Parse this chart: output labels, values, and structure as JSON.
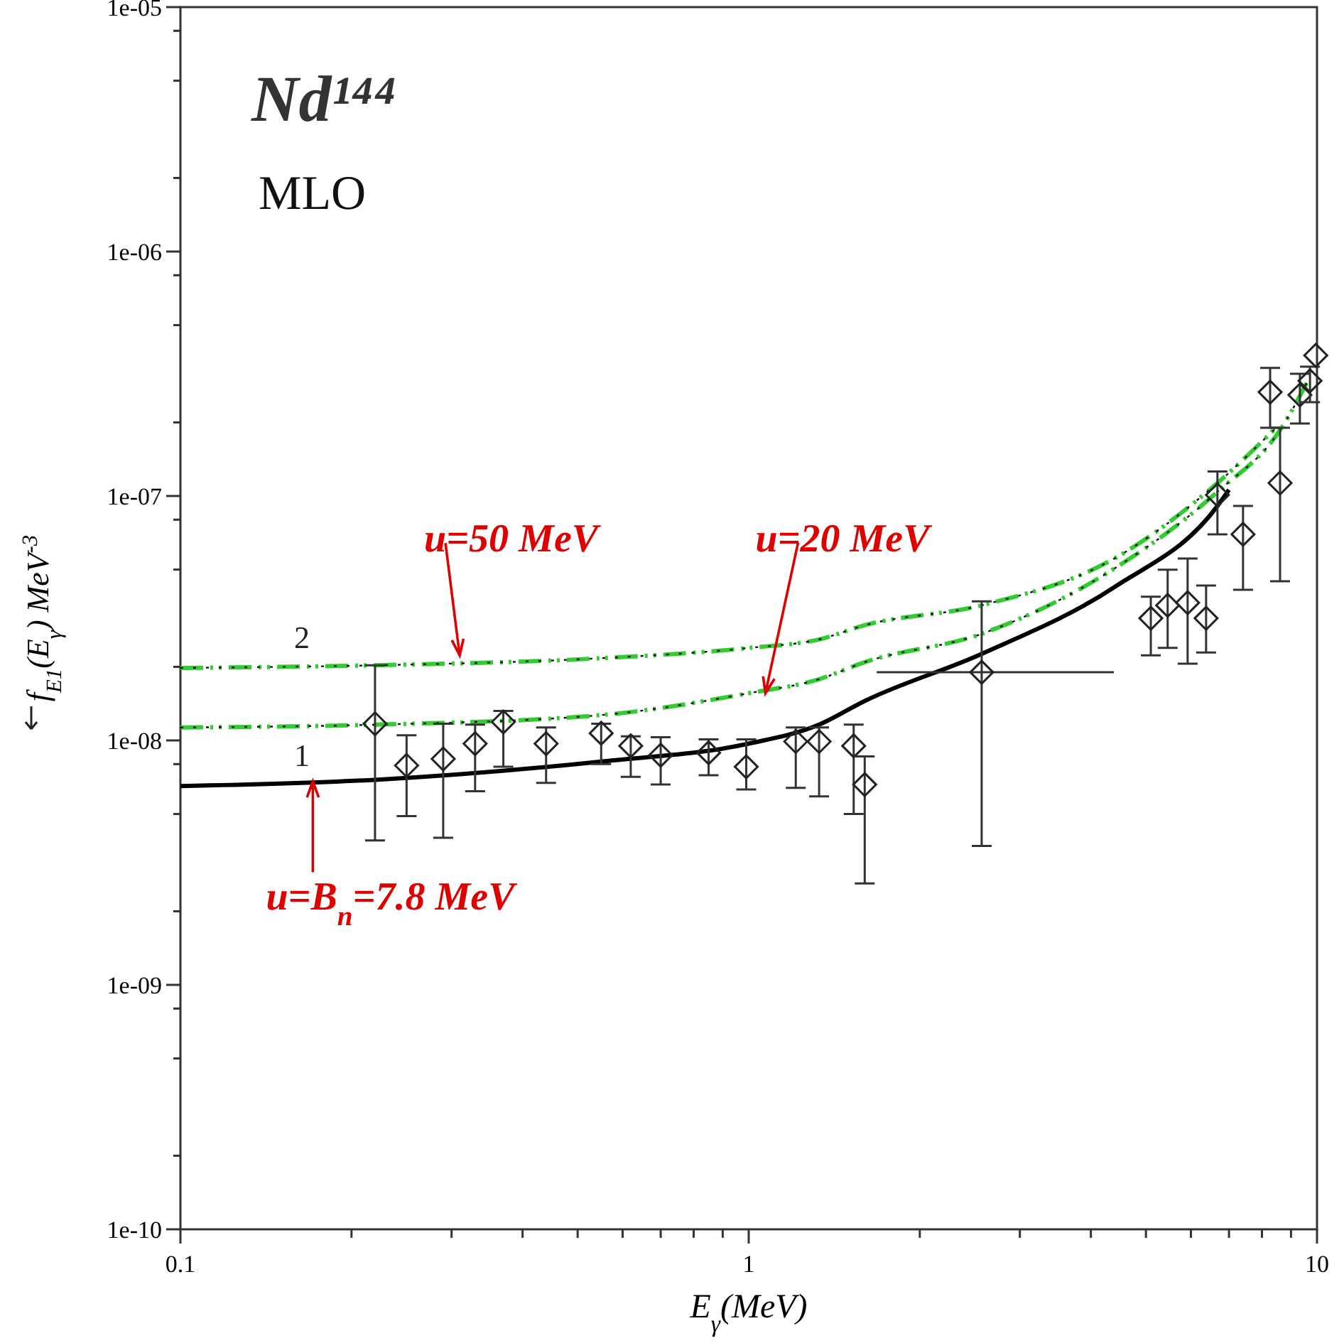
{
  "chart_data": {
    "type": "scatter",
    "title": "Nd¹⁴⁴",
    "subtitle": "MLO",
    "xlabel": "E$_{γ}$(MeV)",
    "ylabel": "f$_{E1}$(E$_{γ}$)  MeV$^{-3}$",
    "log": "xy",
    "grid": false,
    "marker": "diamond",
    "xlim": [
      0.1,
      10
    ],
    "xticks": [
      0.1,
      {
        "value": 0.2,
        "label": null
      },
      {
        "value": 0.3,
        "label": null
      },
      {
        "value": 0.4,
        "label": null
      },
      {
        "value": 0.5,
        "label": null
      },
      {
        "value": 0.6,
        "label": null
      },
      {
        "value": 0.7,
        "label": null
      },
      {
        "value": 0.8,
        "label": null
      },
      {
        "value": 0.9,
        "label": null
      },
      1,
      {
        "value": 2,
        "label": null
      },
      {
        "value": 3,
        "label": null
      },
      {
        "value": 4,
        "label": null
      },
      {
        "value": 5,
        "label": null
      },
      {
        "value": 6,
        "label": null
      },
      {
        "value": 7,
        "label": null
      },
      {
        "value": 8,
        "label": null
      },
      {
        "value": 9,
        "label": null
      },
      10
    ],
    "ylim": [
      1e-10,
      1e-05
    ],
    "yticks": [
      {
        "value": 1e-10,
        "label": "1e-10"
      },
      {
        "value": 2e-10,
        "label": null
      },
      {
        "value": 5e-10,
        "label": null
      },
      {
        "value": 8e-10,
        "label": null
      },
      {
        "value": 1e-09,
        "label": "1e-09"
      },
      {
        "value": 2e-09,
        "label": null
      },
      {
        "value": 5e-09,
        "label": null
      },
      {
        "value": 8e-09,
        "label": null
      },
      {
        "value": 1e-08,
        "label": "1e-08"
      },
      {
        "value": 2e-08,
        "label": null
      },
      {
        "value": 5e-08,
        "label": null
      },
      {
        "value": 8e-08,
        "label": null
      },
      {
        "value": 1e-07,
        "label": "1e-07"
      },
      {
        "value": 2e-07,
        "label": null
      },
      {
        "value": 5e-07,
        "label": null
      },
      {
        "value": 8e-07,
        "label": null
      },
      {
        "value": 1e-06,
        "label": "1e-06"
      },
      {
        "value": 2e-06,
        "label": null
      },
      {
        "value": 5e-06,
        "label": null
      },
      {
        "value": 8e-06,
        "label": null
      },
      {
        "value": 1e-05,
        "label": "1e-05"
      }
    ],
    "series": [
      {
        "type": "line",
        "name": "1",
        "color": "#000000",
        "line_style": "solid",
        "marker": "none",
        "x": [
          0.1,
          0.22,
          0.55,
          1,
          1.33,
          1.6,
          2.57,
          4.4,
          6.68,
          7.0
        ],
        "values": [
          6.5e-09,
          6.9e-09,
          8.2e-09,
          9.7e-09,
          1.16e-08,
          1.45e-08,
          2.26e-08,
          4.24e-08,
          9.1e-08,
          1.06e-07
        ]
      },
      {
        "type": "line",
        "color": "#33cc33",
        "line_style": "dashed",
        "marker": "none",
        "x": [
          0.1,
          0.22,
          0.55,
          1,
          1.33,
          1.6,
          2.57,
          4.4,
          6.68,
          8.66,
          9.72
        ],
        "values": [
          1.13e-08,
          1.16e-08,
          1.27e-08,
          1.56e-08,
          1.78e-08,
          2.09e-08,
          2.73e-08,
          5.05e-08,
          1.04e-07,
          1.9e-07,
          3.08e-07
        ]
      },
      {
        "type": "line",
        "name": "2",
        "color": "#33cc33",
        "line_style": "dashed",
        "marker": "none",
        "x": [
          0.1,
          0.22,
          0.55,
          1,
          1.33,
          1.6,
          2.57,
          4.4,
          6.68,
          8.47
        ],
        "values": [
          1.98e-08,
          2.03e-08,
          2.17e-08,
          2.39e-08,
          2.59e-08,
          2.96e-08,
          3.57e-08,
          5.55e-08,
          1.13e-07,
          1.9e-07
        ]
      },
      {
        "color": "#222222",
        "x": [
          0.22,
          0.25,
          0.29,
          0.33,
          0.37,
          0.44,
          0.55,
          0.62,
          0.7,
          0.85,
          0.99,
          1.21,
          1.33,
          1.53,
          1.6,
          2.57,
          5.1,
          5.46,
          5.92,
          6.38,
          6.68,
          7.41,
          8.27,
          8.61,
          9.33,
          9.72,
          9.95
        ],
        "values": [
          1.17e-08,
          7.9e-09,
          8.4e-09,
          9.7e-09,
          1.19e-08,
          9.7e-09,
          1.07e-08,
          9.5e-09,
          8.7e-09,
          8.9e-09,
          7.8e-09,
          9.9e-09,
          9.9e-09,
          9.5e-09,
          6.6e-09,
          1.9e-08,
          3.16e-08,
          3.57e-08,
          3.66e-08,
          3.16e-08,
          1.01e-07,
          6.97e-08,
          2.66e-07,
          1.13e-07,
          2.59e-07,
          2.96e-07,
          3.76e-07
        ],
        "errors": [
          [
            3.9e-09,
            2.03e-08
          ],
          [
            4.9e-09,
            1.05e-08
          ],
          [
            4e-09,
            1.17e-08
          ],
          [
            6.2e-09,
            1.16e-08
          ],
          [
            7.8e-09,
            1.32e-08
          ],
          [
            6.7e-09,
            1.13e-08
          ],
          [
            8e-09,
            1.17e-08
          ],
          [
            7.1e-09,
            1.04e-08
          ],
          [
            6.6e-09,
            1.03e-08
          ],
          [
            7.2e-09,
            1.01e-08
          ],
          [
            6.3e-09,
            1.01e-08
          ],
          [
            6.4e-09,
            1.13e-08
          ],
          [
            5.9e-09,
            1.13e-08
          ],
          [
            5e-09,
            1.16e-08
          ],
          [
            2.6e-09,
            8.6e-09
          ],
          [
            3.7e-09,
            3.71e-08
          ],
          [
            2.23e-08,
            3.87e-08
          ],
          [
            2.39e-08,
            4.99e-08
          ],
          [
            2.06e-08,
            5.55e-08
          ],
          [
            2.29e-08,
            4.3e-08
          ],
          [
            6.97e-08,
            1.26e-07
          ],
          [
            4.13e-08,
            9.1e-08
          ],
          [
            1.9e-07,
            3.34e-07
          ],
          [
            4.48e-08,
            1.9e-07
          ],
          [
            1.98e-07,
            3.16e-07
          ],
          [
            2.42e-07,
            3.38e-07
          ],
          null
        ],
        "xerrors": [
          null,
          null,
          null,
          null,
          null,
          null,
          null,
          null,
          null,
          null,
          null,
          null,
          null,
          null,
          null,
          [
            1.68,
            4.39
          ],
          null,
          null,
          null,
          null,
          null,
          null,
          null,
          null,
          null,
          null,
          null
        ]
      }
    ],
    "annotations": [
      {
        "text": "u=50 MeV",
        "x": 0.31,
        "y": 2.23e-08
      },
      {
        "text": "u=20 MeV",
        "x": 1.07,
        "y": 1.56e-08
      },
      {
        "text": "u=B$_{n}$=7.8 MeV",
        "x": 0.171,
        "y": 6.8e-09
      }
    ]
  }
}
